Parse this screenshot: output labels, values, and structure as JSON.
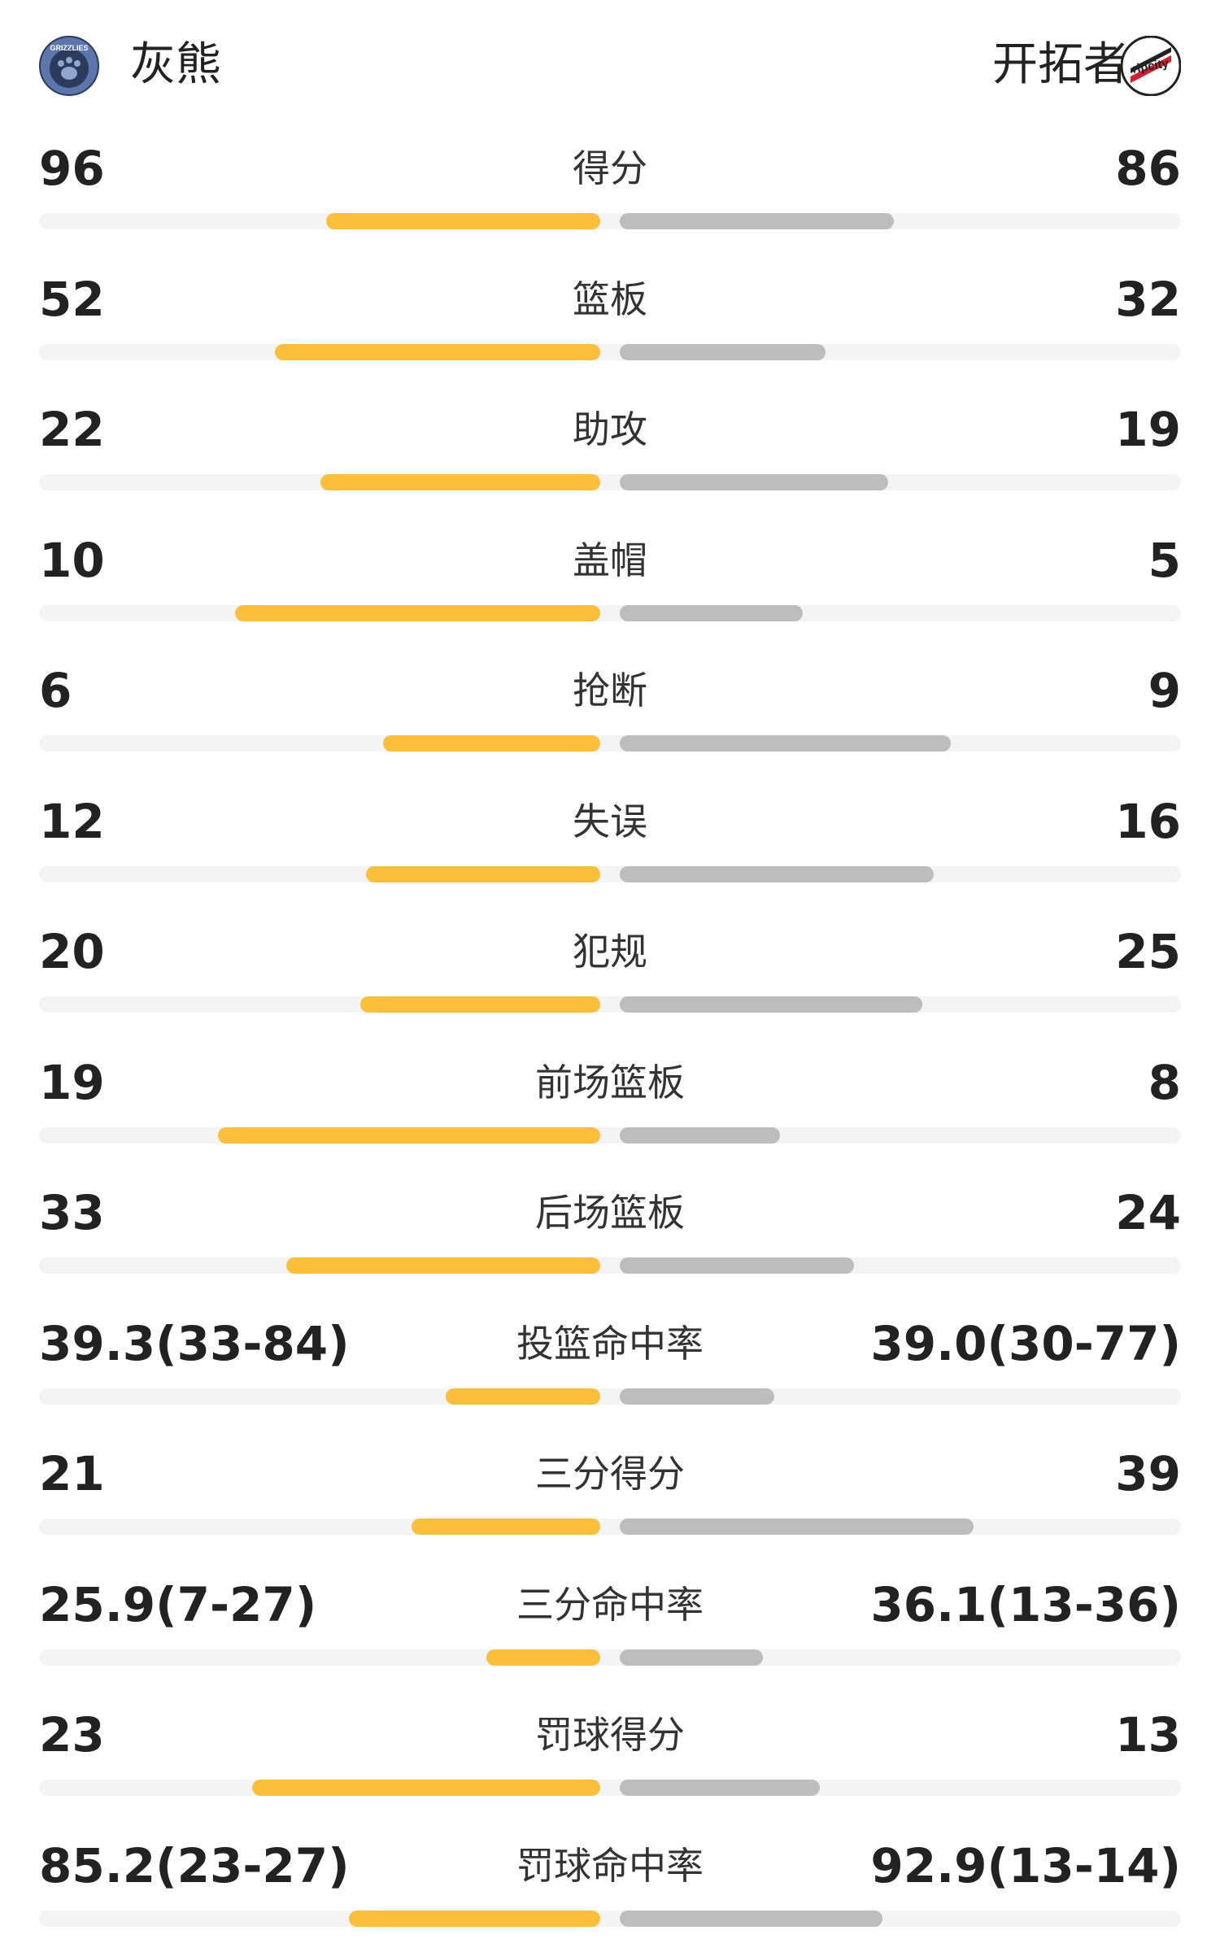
{
  "teams": {
    "home": {
      "name": "灰熊",
      "logo_text": "GRIZZLIES",
      "logo_color": "#5d76a9",
      "bar_color": "#fbbf3c"
    },
    "away": {
      "name": "开拓者",
      "logo_text": "ripcity",
      "logo_color": "#222222",
      "bar_color": "#bdbdbd"
    }
  },
  "stats": [
    {
      "label": "得分",
      "home": "96",
      "away": "86",
      "home_pct": 0.48,
      "away_pct": 0.48
    },
    {
      "label": "篮板",
      "home": "52",
      "away": "32",
      "home_pct": 0.57,
      "away_pct": 0.36
    },
    {
      "label": "助攻",
      "home": "22",
      "away": "19",
      "home_pct": 0.49,
      "away_pct": 0.47
    },
    {
      "label": "盖帽",
      "home": "10",
      "away": "5",
      "home_pct": 0.64,
      "away_pct": 0.32
    },
    {
      "label": "抢断",
      "home": "6",
      "away": "9",
      "home_pct": 0.38,
      "away_pct": 0.58
    },
    {
      "label": "失误",
      "home": "12",
      "away": "16",
      "home_pct": 0.41,
      "away_pct": 0.55
    },
    {
      "label": "犯规",
      "home": "20",
      "away": "25",
      "home_pct": 0.42,
      "away_pct": 0.53
    },
    {
      "label": "前场篮板",
      "home": "19",
      "away": "8",
      "home_pct": 0.67,
      "away_pct": 0.28
    },
    {
      "label": "后场篮板",
      "home": "33",
      "away": "24",
      "home_pct": 0.55,
      "away_pct": 0.41
    },
    {
      "label": "投篮命中率",
      "home": "39.3(33-84)",
      "away": "39.0(30-77)",
      "home_pct": 0.27,
      "away_pct": 0.27
    },
    {
      "label": "三分得分",
      "home": "21",
      "away": "39",
      "home_pct": 0.33,
      "away_pct": 0.62
    },
    {
      "label": "三分命中率",
      "home": "25.9(7-27)",
      "away": "36.1(13-36)",
      "home_pct": 0.2,
      "away_pct": 0.25
    },
    {
      "label": "罚球得分",
      "home": "23",
      "away": "13",
      "home_pct": 0.61,
      "away_pct": 0.35
    },
    {
      "label": "罚球命中率",
      "home": "85.2(23-27)",
      "away": "92.9(13-14)",
      "home_pct": 0.44,
      "away_pct": 0.46
    }
  ]
}
